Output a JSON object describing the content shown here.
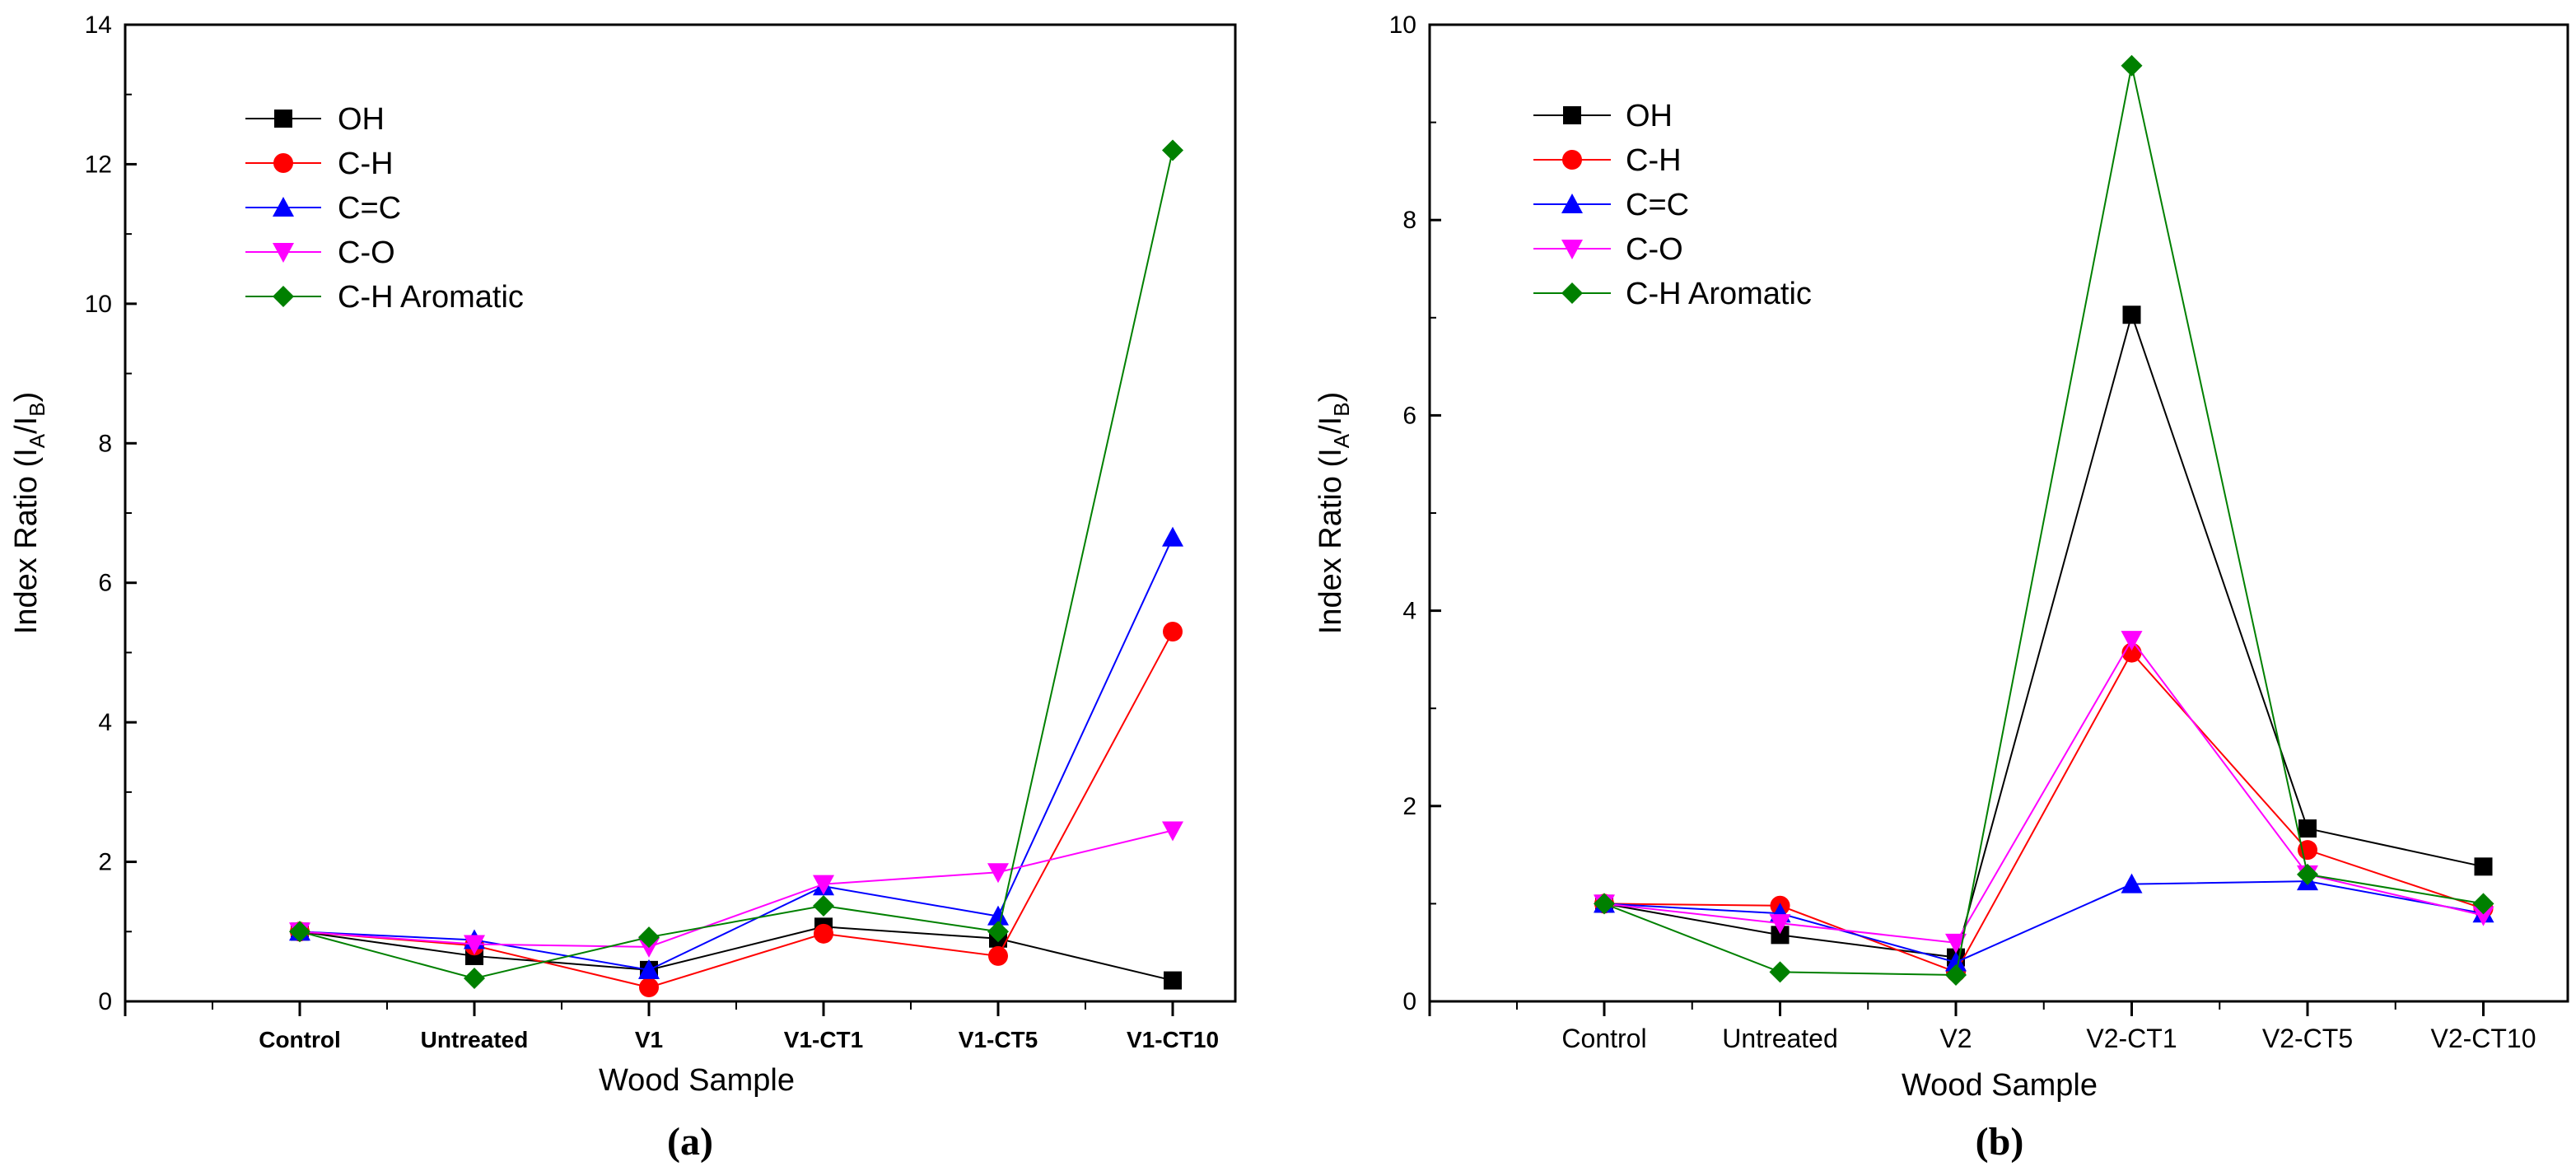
{
  "chart_data": [
    {
      "type": "line",
      "panel_label": "(a)",
      "xlabel": "Wood Sample",
      "ylabel_main": "Index Ratio (I",
      "ylabel_sub_a": "A",
      "ylabel_sep": "/I",
      "ylabel_sub_b": "B",
      "ylabel_close": ")",
      "categories": [
        "Control",
        "Untreated",
        "V1",
        "V1-CT1",
        "V1-CT5",
        "V1-CT10"
      ],
      "category_style": "bold",
      "ylim": [
        0,
        14
      ],
      "yticks": [
        0,
        2,
        4,
        6,
        8,
        10,
        12,
        14
      ],
      "legend_position": "top-left",
      "series": [
        {
          "name": "OH",
          "color": "#000000",
          "marker": "square",
          "values": [
            1.0,
            0.65,
            0.45,
            1.07,
            0.9,
            0.3
          ]
        },
        {
          "name": "C-H",
          "color": "#ff0000",
          "marker": "circle",
          "values": [
            1.0,
            0.8,
            0.2,
            0.97,
            0.65,
            5.3
          ]
        },
        {
          "name": "C=C",
          "color": "#0000ff",
          "marker": "triangle-up",
          "values": [
            1.0,
            0.88,
            0.45,
            1.65,
            1.22,
            6.65
          ]
        },
        {
          "name": "C-O",
          "color": "#ff00ff",
          "marker": "triangle-down",
          "values": [
            1.0,
            0.82,
            0.78,
            1.68,
            1.85,
            2.45
          ]
        },
        {
          "name": "C-H Aromatic",
          "color": "#008000",
          "marker": "diamond",
          "values": [
            1.0,
            0.33,
            0.92,
            1.37,
            1.0,
            12.2
          ]
        }
      ]
    },
    {
      "type": "line",
      "panel_label": "(b)",
      "xlabel": "Wood Sample",
      "ylabel_main": "Index Ratio (I",
      "ylabel_sub_a": "A",
      "ylabel_sep": "/I",
      "ylabel_sub_b": "B",
      "ylabel_close": ")",
      "categories": [
        "Control",
        "Untreated",
        "V2",
        "V2-CT1",
        "V2-CT5",
        "V2-CT10"
      ],
      "category_style": "normal",
      "ylim": [
        0,
        10
      ],
      "yticks": [
        0,
        2,
        4,
        6,
        8,
        10
      ],
      "legend_position": "top-left",
      "series": [
        {
          "name": "OH",
          "color": "#000000",
          "marker": "square",
          "values": [
            1.0,
            0.68,
            0.45,
            7.03,
            1.77,
            1.38
          ]
        },
        {
          "name": "C-H",
          "color": "#ff0000",
          "marker": "circle",
          "values": [
            1.0,
            0.98,
            0.3,
            3.57,
            1.55,
            0.95
          ]
        },
        {
          "name": "C=C",
          "color": "#0000ff",
          "marker": "triangle-up",
          "values": [
            1.0,
            0.9,
            0.4,
            1.2,
            1.23,
            0.9
          ]
        },
        {
          "name": "C-O",
          "color": "#ff00ff",
          "marker": "triangle-down",
          "values": [
            1.0,
            0.8,
            0.6,
            3.7,
            1.3,
            0.88
          ]
        },
        {
          "name": "C-H Aromatic",
          "color": "#008000",
          "marker": "diamond",
          "values": [
            1.0,
            0.3,
            0.27,
            9.58,
            1.3,
            1.0
          ]
        }
      ]
    }
  ]
}
